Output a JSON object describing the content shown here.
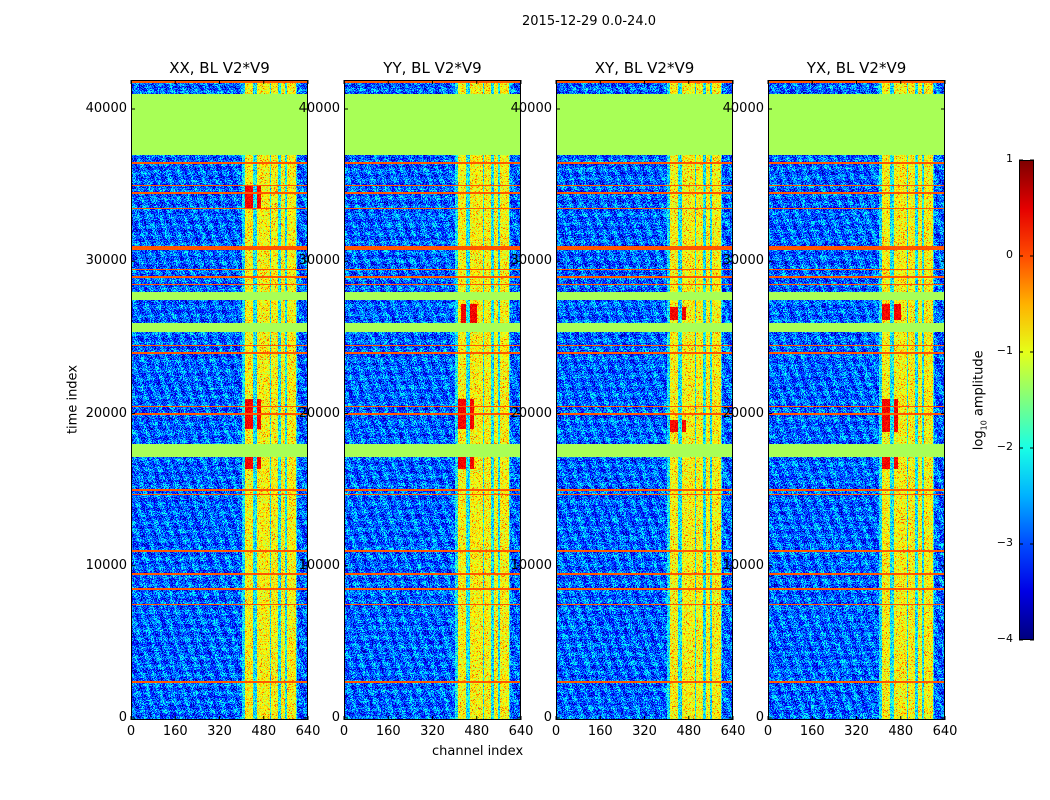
{
  "figure_title": "2015-12-29 0.0-24.0",
  "chart_data": {
    "type": "heatmap",
    "xlabel": "channel index",
    "ylabel": "time index",
    "xlim": [
      0,
      640
    ],
    "ylim": [
      0,
      41900
    ],
    "xticks": [
      "0",
      "160",
      "320",
      "480",
      "640"
    ],
    "xtick_values": [
      0,
      160,
      320,
      480,
      640
    ],
    "yticks": [
      "0",
      "10000",
      "20000",
      "30000",
      "40000"
    ],
    "ytick_values": [
      0,
      10000,
      20000,
      30000,
      40000
    ],
    "colorbar": {
      "label": "log10 amplitude",
      "label_main": "log",
      "label_sub": "10",
      "label_rest": " amplitude",
      "colormap": "jet",
      "range": [
        -4,
        1
      ],
      "ticks": [
        "1",
        "0",
        "−1",
        "−2",
        "−3",
        "−4"
      ],
      "tick_values": [
        1,
        0,
        -1,
        -2,
        -3,
        -4
      ]
    },
    "panels": [
      {
        "title": "XX, BL V2*V9",
        "hot_blocks": [
          [
            400,
            470,
            16400,
            17200
          ],
          [
            400,
            470,
            19000,
            21000
          ],
          [
            400,
            470,
            33500,
            35000
          ]
        ]
      },
      {
        "title": "YY, BL V2*V9",
        "hot_blocks": [
          [
            420,
            480,
            26000,
            27200
          ],
          [
            400,
            470,
            16400,
            17200
          ],
          [
            400,
            470,
            19000,
            21000
          ]
        ]
      },
      {
        "title": "XY, BL V2*V9",
        "hot_blocks": [
          [
            400,
            470,
            26200,
            27000
          ],
          [
            400,
            470,
            18800,
            19600
          ]
        ]
      },
      {
        "title": "YX, BL V2*V9",
        "hot_blocks": [
          [
            400,
            480,
            26200,
            27200
          ],
          [
            400,
            470,
            16400,
            17200
          ],
          [
            400,
            470,
            18800,
            21000
          ]
        ]
      }
    ],
    "flagged_time_ranges": [
      [
        37000,
        41000
      ],
      [
        27500,
        28000
      ],
      [
        25400,
        26000
      ],
      [
        17200,
        18000
      ]
    ],
    "flagged_value": -1.3,
    "rfi_time_lines": [
      41800,
      36500,
      35000,
      34500,
      33500,
      30900,
      29500,
      29000,
      28500,
      24500,
      24000,
      20500,
      20000,
      15000,
      14700,
      11000,
      9500,
      8500,
      7500,
      2400
    ],
    "rfi_channel_ranges": [
      [
        410,
        440
      ],
      [
        452,
        500
      ],
      [
        505,
        530
      ],
      [
        540,
        555
      ],
      [
        562,
        595
      ]
    ],
    "rfi_channel_value": -0.9,
    "background_value": -2.9
  }
}
